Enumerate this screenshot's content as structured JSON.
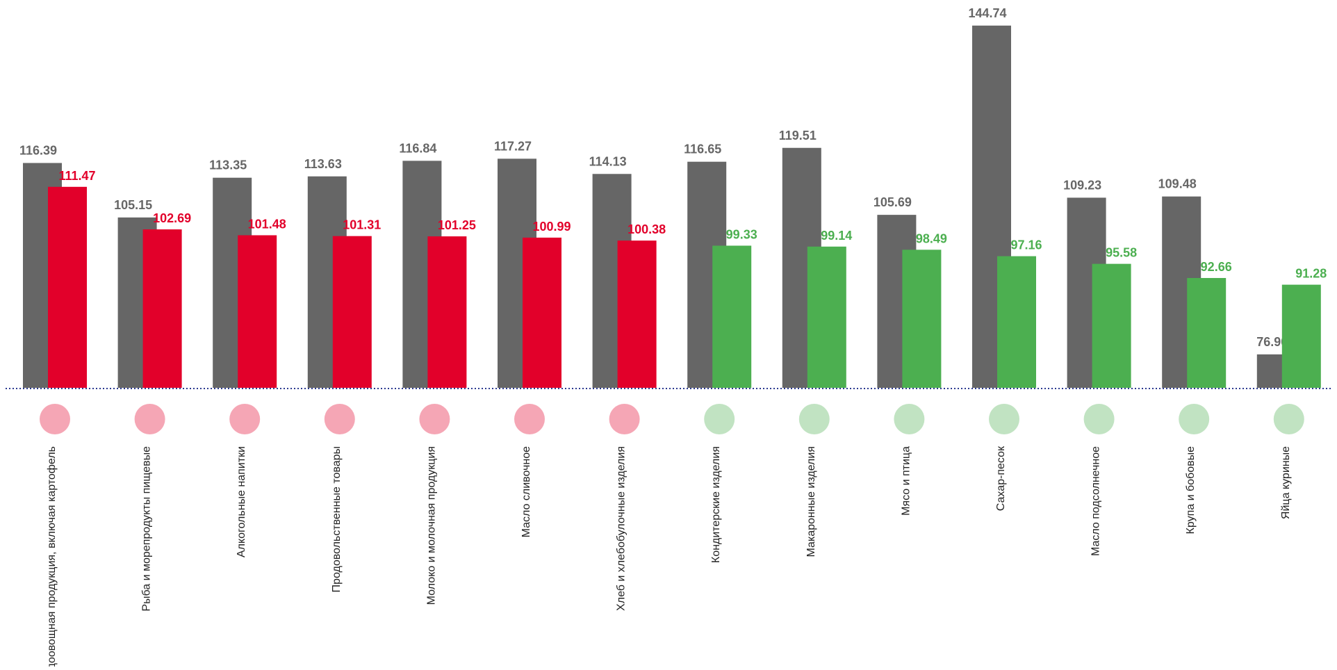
{
  "chart_data": {
    "type": "bar",
    "categories": [
      "Плодоовощная продукция, включая картофель",
      "Рыба и морепродукты пищевые",
      "Алкогольные напитки",
      "Продовольственные товары",
      "Молоко и молочная продукция",
      "Масло сливочное",
      "Хлеб и хлебобулочные изделия",
      "Кондитерские изделия",
      "Макаронные изделия",
      "Мясо и птица",
      "Сахар-песок",
      "Масло подсолнечное",
      "Крупа и бобовые",
      "Яйца куриные"
    ],
    "series": [
      {
        "color": "#666666",
        "values": [
          116.39,
          105.15,
          113.35,
          113.63,
          116.84,
          117.27,
          114.13,
          116.65,
          119.51,
          105.69,
          144.74,
          109.23,
          109.48,
          76.9
        ],
        "value_labels": [
          "116.39",
          "105.15",
          "113.35",
          "113.63",
          "116.84",
          "117.27",
          "114.13",
          "116.65",
          "119.51",
          "105.69",
          "144.74",
          "109.23",
          "109.48",
          "76.90"
        ]
      },
      {
        "colors": [
          "#e2002a",
          "#e2002a",
          "#e2002a",
          "#e2002a",
          "#e2002a",
          "#e2002a",
          "#e2002a",
          "#4caf50",
          "#4caf50",
          "#4caf50",
          "#4caf50",
          "#4caf50",
          "#4caf50",
          "#4caf50"
        ],
        "values": [
          111.47,
          102.69,
          101.48,
          101.31,
          101.25,
          100.99,
          100.38,
          99.33,
          99.14,
          98.49,
          97.16,
          95.58,
          92.66,
          91.28
        ],
        "value_labels": [
          "111.47",
          "102.69",
          "101.48",
          "101.31",
          "101.25",
          "100.99",
          "100.38",
          "99.33",
          "99.14",
          "98.49",
          "97.16",
          "95.58",
          "92.66",
          "91.28"
        ]
      }
    ],
    "ylim": [
      70,
      145
    ],
    "grid": false
  }
}
